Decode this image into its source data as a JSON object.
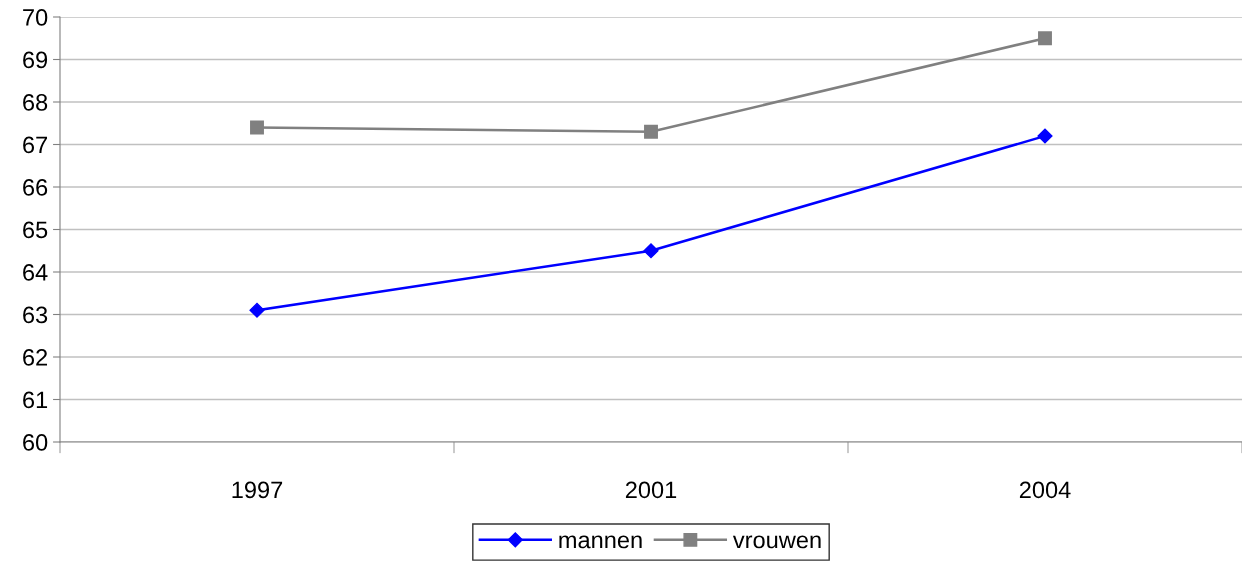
{
  "chart_data": {
    "type": "line",
    "categories": [
      "1997",
      "2001",
      "2004"
    ],
    "series": [
      {
        "name": "mannen",
        "color": "#0000ff",
        "marker": "diamond",
        "values": [
          63.1,
          64.5,
          67.2
        ]
      },
      {
        "name": "vrouwen",
        "color": "#808080",
        "marker": "square",
        "values": [
          67.4,
          67.3,
          69.5
        ]
      }
    ],
    "ylim": [
      60,
      70
    ],
    "yticks": [
      60,
      61,
      62,
      63,
      64,
      65,
      66,
      67,
      68,
      69,
      70
    ],
    "grid": "y",
    "legend": "bottom",
    "line_style": "solid"
  }
}
